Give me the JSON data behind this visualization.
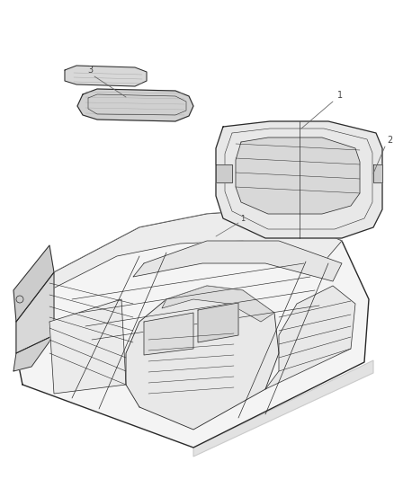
{
  "background_color": "#ffffff",
  "line_color": "#2a2a2a",
  "fill_light": "#f0f0f0",
  "fill_mid": "#e0e0e0",
  "fill_dark": "#c8c8c8",
  "label_color": "#444444",
  "figsize": [
    4.38,
    5.33
  ],
  "dpi": 100,
  "leader_color": "#666666"
}
